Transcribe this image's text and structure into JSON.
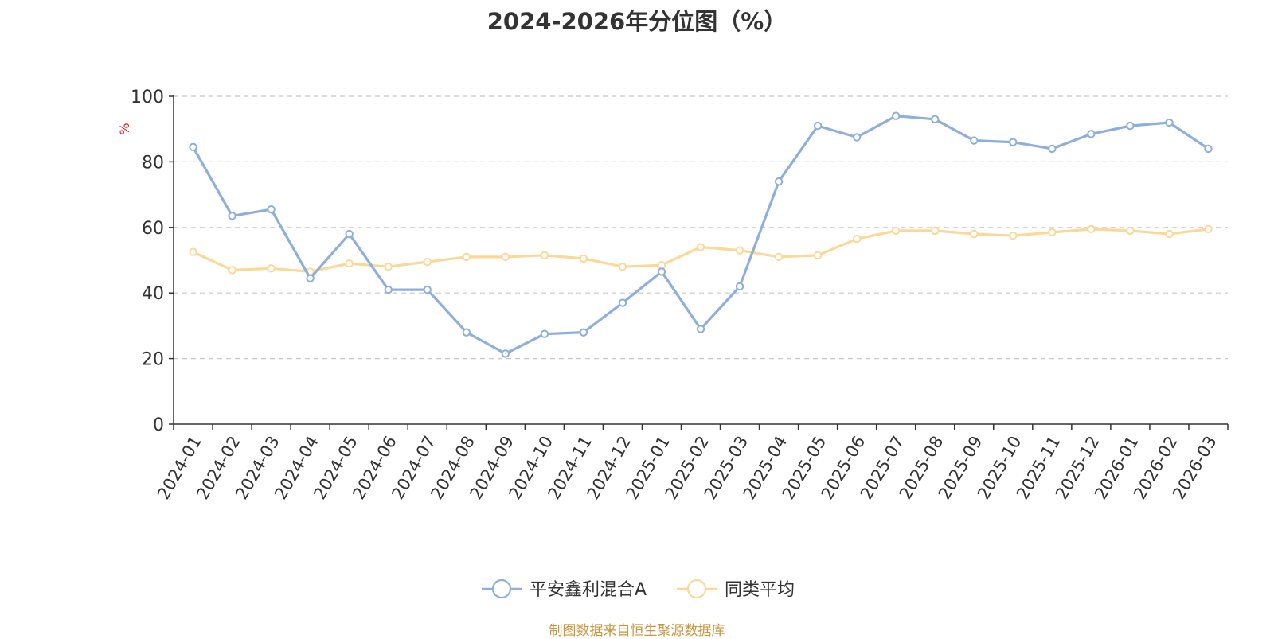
{
  "chart_data": {
    "type": "line",
    "title": "2024-2026年分位图（%）",
    "ylabel": "%",
    "ylim": [
      0,
      100
    ],
    "yticks": [
      0,
      20,
      40,
      60,
      80,
      100
    ],
    "grid": true,
    "legend_position": "bottom-center",
    "categories": [
      "2024-01",
      "2024-02",
      "2024-03",
      "2024-04",
      "2024-05",
      "2024-06",
      "2024-07",
      "2024-08",
      "2024-09",
      "2024-10",
      "2024-11",
      "2024-12",
      "2025-01",
      "2025-02",
      "2025-03",
      "2025-04",
      "2025-05",
      "2025-06",
      "2025-07",
      "2025-08",
      "2025-09",
      "2025-10",
      "2025-11",
      "2025-12",
      "2026-01",
      "2026-02",
      "2026-03"
    ],
    "series": [
      {
        "name": "平安鑫利混合A",
        "color": "#8eaedb",
        "values": [
          84.5,
          63.5,
          65.5,
          44.5,
          58,
          41,
          41,
          28,
          21.5,
          27.5,
          28,
          37,
          46.5,
          29,
          42,
          74,
          91,
          87.5,
          94,
          93,
          86.5,
          86,
          84,
          88.5,
          91,
          92,
          84
        ]
      },
      {
        "name": "同类平均",
        "color": "#fbd898",
        "values": [
          52.5,
          47,
          47.5,
          46.5,
          49,
          48,
          49.5,
          51,
          51,
          51.5,
          50.5,
          48,
          48.5,
          54,
          53,
          51,
          51.5,
          56.5,
          59,
          59,
          58,
          57.5,
          58.5,
          59.5,
          59,
          58,
          59.5
        ]
      }
    ]
  },
  "footer": {
    "source": "制图数据来自恒生聚源数据库"
  }
}
